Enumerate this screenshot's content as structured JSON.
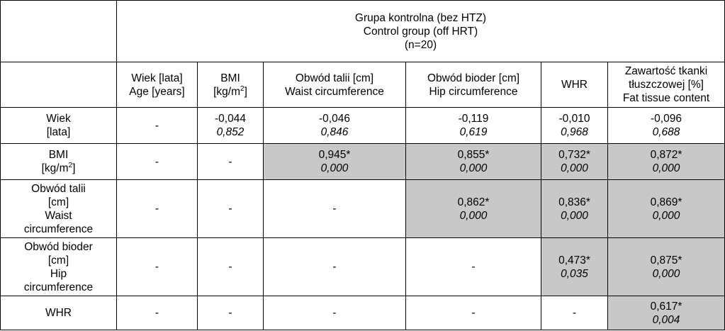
{
  "group_header": {
    "line1": "Grupa kontrolna (bez HTZ)",
    "line2": "Control group (off HRT)",
    "line3": "(n=20)"
  },
  "columns": [
    {
      "lines": [
        "Wiek [lata]",
        "Age [years]"
      ]
    },
    {
      "lines": [
        "BMI",
        "[kg/m",
        "]"
      ],
      "sup": "2"
    },
    {
      "lines": [
        "Obwód talii [cm]",
        "Waist circumference"
      ]
    },
    {
      "lines": [
        "Obwód bioder [cm]",
        "Hip circumference"
      ]
    },
    {
      "lines": [
        "WHR"
      ]
    },
    {
      "lines": [
        "Zawartość tkanki",
        "tłuszczowej [%]",
        "Fat tissue content"
      ]
    }
  ],
  "rows": [
    {
      "label": [
        "Wiek",
        "[lata]"
      ],
      "cells": [
        {
          "dash": "-"
        },
        {
          "r": "-0,044",
          "p": "0,852"
        },
        {
          "r": "-0,046",
          "p": "0,846"
        },
        {
          "r": "-0,119",
          "p": "0,619"
        },
        {
          "r": "-0,010",
          "p": "0,968"
        },
        {
          "r": "-0,096",
          "p": "0,688"
        }
      ]
    },
    {
      "label": [
        "BMI",
        "[kg/m",
        "]"
      ],
      "sup": "2",
      "cells": [
        {
          "dash": "-"
        },
        {
          "dash": "-"
        },
        {
          "r": "0,945*",
          "p": "0,000"
        },
        {
          "r": "0,855*",
          "p": "0,000"
        },
        {
          "r": "0,732*",
          "p": "0,000"
        },
        {
          "r": "0,872*",
          "p": "0,000"
        }
      ]
    },
    {
      "label": [
        "Obwód talii",
        "[cm]",
        "Waist",
        "circumference"
      ],
      "cells": [
        {
          "dash": "-"
        },
        {
          "dash": "-"
        },
        {
          "dash": "-"
        },
        {
          "r": "0,862*",
          "p": "0,000"
        },
        {
          "r": "0,836*",
          "p": "0,000"
        },
        {
          "r": "0,869*",
          "p": "0,000"
        }
      ]
    },
    {
      "label": [
        "Obwód bioder",
        "[cm]",
        "Hip",
        "circumference"
      ],
      "cells": [
        {
          "dash": "-"
        },
        {
          "dash": "-"
        },
        {
          "dash": "-"
        },
        {
          "dash": "-"
        },
        {
          "r": "0,473*",
          "p": "0,035"
        },
        {
          "r": "0,875*",
          "p": "0,000"
        }
      ]
    },
    {
      "label": [
        "WHR"
      ],
      "cells": [
        {
          "dash": "-"
        },
        {
          "dash": "-"
        },
        {
          "dash": "-"
        },
        {
          "dash": "-"
        },
        {
          "dash": "-"
        },
        {
          "r": "0,617*",
          "p": "0,004"
        }
      ]
    }
  ]
}
